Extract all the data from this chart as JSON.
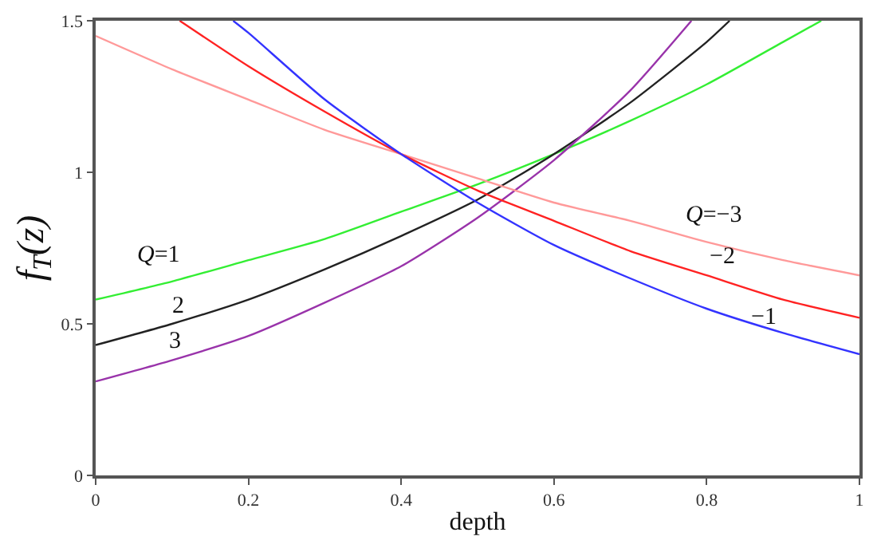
{
  "chart_data": {
    "type": "line",
    "xlabel": "depth",
    "ylabel": "f$_{T}$(z)",
    "xlim": [
      0,
      1
    ],
    "ylim": [
      0,
      1.5
    ],
    "xticks": [
      0,
      0.2,
      0.4,
      0.6,
      0.8,
      1
    ],
    "yticks": [
      0,
      0.5,
      1,
      1.5
    ],
    "legend": false,
    "marker": "none",
    "line_style": "solid",
    "series": [
      {
        "name": "Q=1",
        "color": "#33ee33",
        "x": [
          0,
          0.1,
          0.2,
          0.3,
          0.4,
          0.5,
          0.6,
          0.7,
          0.8,
          0.9,
          0.95
        ],
        "values": [
          0.58,
          0.64,
          0.71,
          0.78,
          0.87,
          0.96,
          1.06,
          1.17,
          1.29,
          1.43,
          1.5
        ]
      },
      {
        "name": "2",
        "color": "#222222",
        "x": [
          0,
          0.1,
          0.2,
          0.3,
          0.4,
          0.5,
          0.6,
          0.7,
          0.8,
          0.83
        ],
        "values": [
          0.43,
          0.5,
          0.58,
          0.68,
          0.79,
          0.91,
          1.06,
          1.23,
          1.43,
          1.5
        ]
      },
      {
        "name": "3",
        "color": "#9933aa",
        "x": [
          0,
          0.1,
          0.2,
          0.3,
          0.4,
          0.5,
          0.6,
          0.7,
          0.78
        ],
        "values": [
          0.31,
          0.38,
          0.46,
          0.57,
          0.69,
          0.85,
          1.04,
          1.27,
          1.5
        ]
      },
      {
        "name": "Q=−3",
        "color": "#ff9999",
        "x": [
          0,
          0.1,
          0.2,
          0.3,
          0.4,
          0.5,
          0.6,
          0.7,
          0.8,
          0.9,
          1
        ],
        "values": [
          1.45,
          1.34,
          1.24,
          1.14,
          1.06,
          0.98,
          0.9,
          0.84,
          0.77,
          0.71,
          0.66
        ]
      },
      {
        "name": "−2",
        "color": "#ff2222",
        "x": [
          0.11,
          0.2,
          0.3,
          0.4,
          0.5,
          0.6,
          0.7,
          0.8,
          0.9,
          1
        ],
        "values": [
          1.5,
          1.35,
          1.2,
          1.06,
          0.94,
          0.84,
          0.74,
          0.66,
          0.58,
          0.52
        ]
      },
      {
        "name": "−1",
        "color": "#3333ff",
        "x": [
          0.18,
          0.2,
          0.3,
          0.4,
          0.5,
          0.6,
          0.7,
          0.8,
          0.9,
          1
        ],
        "values": [
          1.5,
          1.46,
          1.24,
          1.06,
          0.9,
          0.76,
          0.65,
          0.55,
          0.47,
          0.4
        ]
      }
    ]
  }
}
